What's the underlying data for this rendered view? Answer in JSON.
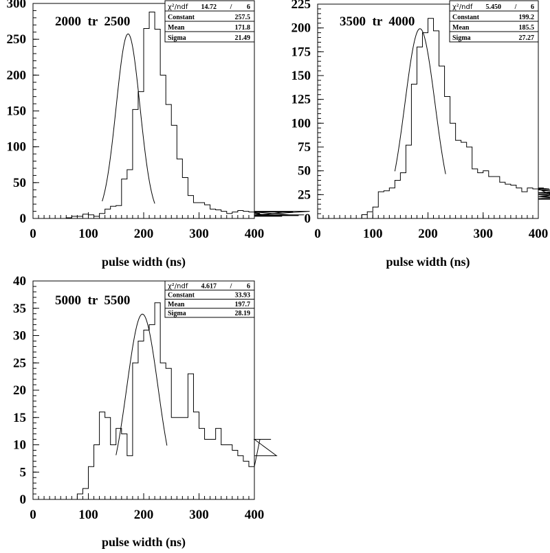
{
  "chart_data": [
    {
      "type": "histogram",
      "panel_label": "2000  tr  2500",
      "xlabel": "pulse width (ns)",
      "ylabel": "",
      "xlim": [
        0,
        400
      ],
      "ylim": [
        0,
        300
      ],
      "x_ticks": [
        0,
        100,
        200,
        300,
        400
      ],
      "y_ticks": [
        0,
        50,
        100,
        150,
        200,
        250,
        300
      ],
      "bin_width": 10,
      "bin_edges_start": 0,
      "values": [
        0,
        0,
        0,
        0,
        0,
        0,
        1,
        3,
        3,
        6,
        5,
        3,
        7,
        13,
        17,
        18,
        55,
        68,
        152,
        177,
        265,
        288,
        264,
        200,
        159,
        130,
        83,
        57,
        32,
        22,
        22,
        19,
        13,
        12,
        10,
        7,
        9,
        11,
        10,
        9,
        8,
        7,
        5,
        3,
        4,
        3,
        10,
        9,
        4,
        5,
        10
      ],
      "_note_unused": "",
      "fit": {
        "type": "gaussian",
        "constant": 257.5,
        "mean": 171.8,
        "sigma": 21.49,
        "x_range": [
          125,
          220
        ]
      },
      "stats": {
        "chi2_label": "χ²/ndf",
        "chi2_value": "14.72",
        "chi2_sep": "/",
        "ndf": "6",
        "rows": [
          {
            "label": "Constant",
            "value": "257.5"
          },
          {
            "label": "Mean",
            "value": "171.8"
          },
          {
            "label": "Sigma",
            "value": "21.49"
          }
        ]
      }
    },
    {
      "type": "histogram",
      "panel_label": "3500  tr  4000",
      "xlabel": "pulse width (ns)",
      "ylabel": "",
      "xlim": [
        0,
        400
      ],
      "ylim": [
        0,
        225
      ],
      "x_ticks": [
        0,
        100,
        200,
        300,
        400
      ],
      "y_ticks": [
        0,
        25,
        50,
        75,
        100,
        125,
        150,
        175,
        200,
        225
      ],
      "bin_width": 10,
      "bin_edges_start": 0,
      "values": [
        0,
        0,
        0,
        0,
        0,
        0,
        0,
        0,
        4,
        7,
        12,
        28,
        29,
        32,
        40,
        48,
        77,
        141,
        180,
        195,
        210,
        197,
        160,
        128,
        100,
        82,
        80,
        75,
        52,
        48,
        50,
        44,
        44,
        38,
        36,
        35,
        32,
        28,
        32,
        31,
        31,
        32,
        31,
        23,
        21,
        23,
        26,
        27,
        30,
        25,
        20
      ],
      "fit": {
        "type": "gaussian",
        "constant": 199.2,
        "mean": 185.5,
        "sigma": 27.27,
        "x_range": [
          140,
          232
        ]
      },
      "stats": {
        "chi2_label": "χ²/ndf",
        "chi2_value": "5.450",
        "chi2_sep": "/",
        "ndf": "6",
        "rows": [
          {
            "label": "Constant",
            "value": "199.2"
          },
          {
            "label": "Mean",
            "value": "185.5"
          },
          {
            "label": "Sigma",
            "value": "27.27"
          }
        ]
      }
    },
    {
      "type": "histogram",
      "panel_label": "5000  tr  5500",
      "xlabel": "pulse width (ns)",
      "ylabel": "",
      "xlim": [
        0,
        400
      ],
      "ylim": [
        0,
        40
      ],
      "x_ticks": [
        0,
        100,
        200,
        300,
        400
      ],
      "y_ticks": [
        0,
        5,
        10,
        15,
        20,
        25,
        30,
        35,
        40
      ],
      "bin_width": 10,
      "bin_edges_start": 0,
      "values": [
        0,
        0,
        0,
        0,
        0,
        0,
        0,
        0,
        1,
        2,
        6,
        10,
        16,
        15,
        10,
        13,
        12,
        8,
        25,
        29,
        31,
        32,
        36,
        25,
        24,
        15,
        15,
        15,
        23,
        16,
        13,
        11,
        11,
        13,
        10,
        10,
        9,
        8,
        7,
        6,
        6,
        11,
        11,
        11,
        8
      ],
      "fit": {
        "type": "gaussian",
        "constant": 33.93,
        "mean": 197.7,
        "sigma": 28.19,
        "x_range": [
          150,
          242
        ]
      },
      "stats": {
        "chi2_label": "χ²/ndf",
        "chi2_value": "4.617",
        "chi2_sep": "/",
        "ndf": "6",
        "rows": [
          {
            "label": "Constant",
            "value": "33.93"
          },
          {
            "label": "Mean",
            "value": "197.7"
          },
          {
            "label": "Sigma",
            "value": "28.19"
          }
        ]
      }
    }
  ]
}
